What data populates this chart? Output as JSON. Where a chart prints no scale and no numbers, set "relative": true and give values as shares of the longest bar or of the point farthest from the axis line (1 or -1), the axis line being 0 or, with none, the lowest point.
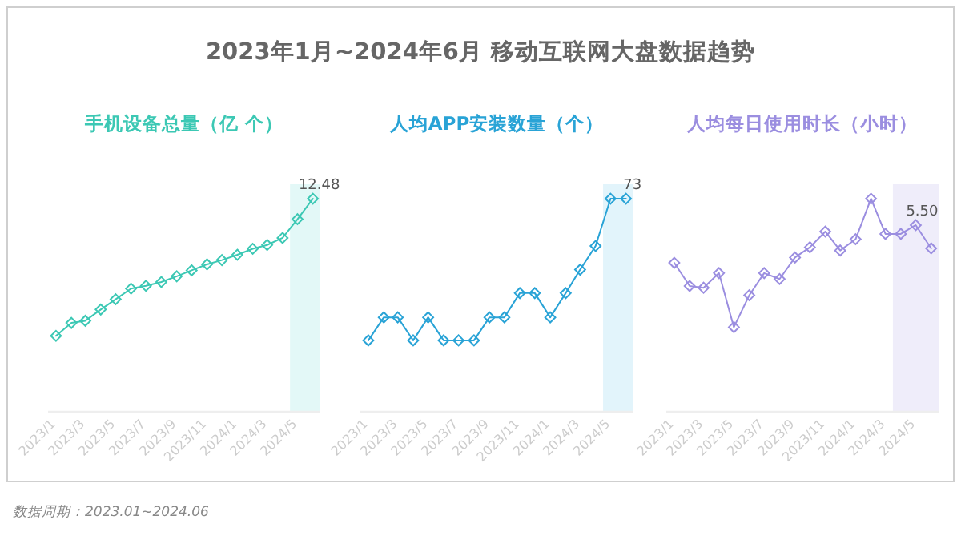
{
  "chart_data": [
    {
      "type": "line",
      "title": "2023年1月~2024年6月 移动互联网大盘数据趋势",
      "subtitle": "手机设备总量（亿 个）",
      "relative": true,
      "marker": "diamond",
      "line_style": "solid",
      "x": [
        "2023-01",
        "2023-02",
        "2023-03",
        "2023-04",
        "2023-05",
        "2023-06",
        "2023-07",
        "2023-08",
        "2023-09",
        "2023-10",
        "2023-11",
        "2023-12",
        "2024-01",
        "2024-02",
        "2024-03",
        "2024-04",
        "2024-05",
        "2024-06"
      ],
      "xlim": [
        "2022-12-16",
        "2024-06-16"
      ],
      "xticks": [
        {
          "value": "2023-01",
          "label": "2023/1"
        },
        {
          "value": "2023-03",
          "label": "2023/3"
        },
        {
          "value": "2023-05",
          "label": "2023/5"
        },
        {
          "value": "2023-07",
          "label": "2023/7"
        },
        {
          "value": "2023-09",
          "label": "2023/9"
        },
        {
          "value": "2023-11",
          "label": "2023/11"
        },
        {
          "value": "2024-01",
          "label": "2024/1"
        },
        {
          "value": "2024-03",
          "label": "2024/3"
        },
        {
          "value": "2024-05",
          "label": "2024/5"
        }
      ],
      "bands": [
        {
          "axis": "x",
          "from": "2024-04-16",
          "to": "2024-06-16",
          "color": "#e3f8f7"
        }
      ],
      "series": [
        {
          "color": "#3cc8b4",
          "values": [
            0.356,
            0.417,
            0.427,
            0.48,
            0.528,
            0.578,
            0.591,
            0.609,
            0.636,
            0.664,
            0.692,
            0.712,
            0.737,
            0.765,
            0.783,
            0.816,
            0.904,
            1
          ]
        }
      ],
      "annotations": [
        {
          "text": "12.48",
          "x": "2024-06",
          "y": 1
        },
        "数据周期：2023.01~2024.06"
      ]
    },
    {
      "type": "line",
      "subtitle": "人均APP安装数量（个）",
      "relative": true,
      "marker": "diamond",
      "line_style": "solid",
      "x": [
        "2023-01",
        "2023-02",
        "2023-03",
        "2023-04",
        "2023-05",
        "2023-06",
        "2023-07",
        "2023-08",
        "2023-09",
        "2023-10",
        "2023-11",
        "2023-12",
        "2024-01",
        "2024-02",
        "2024-03",
        "2024-04",
        "2024-05",
        "2024-06"
      ],
      "xlim": [
        "2022-12-16",
        "2024-06-16"
      ],
      "xticks": [
        {
          "value": "2023-01",
          "label": "2023/1"
        },
        {
          "value": "2023-03",
          "label": "2023/3"
        },
        {
          "value": "2023-05",
          "label": "2023/5"
        },
        {
          "value": "2023-07",
          "label": "2023/7"
        },
        {
          "value": "2023-09",
          "label": "2023/9"
        },
        {
          "value": "2023-11",
          "label": "2023/11"
        },
        {
          "value": "2024-01",
          "label": "2024/1"
        },
        {
          "value": "2024-03",
          "label": "2024/3"
        },
        {
          "value": "2024-05",
          "label": "2024/5"
        }
      ],
      "bands": [
        {
          "axis": "x",
          "from": "2024-04-16",
          "to": "2024-06-16",
          "color": "#e2f4fb"
        }
      ],
      "series": [
        {
          "color": "#29a3d6",
          "values": [
            0.335,
            0.443,
            0.443,
            0.335,
            0.443,
            0.335,
            0.335,
            0.335,
            0.443,
            0.443,
            0.557,
            0.557,
            0.443,
            0.557,
            0.667,
            0.778,
            1,
            1
          ]
        }
      ],
      "annotations": [
        {
          "text": "73",
          "x": "2024-06",
          "y": 1
        }
      ]
    },
    {
      "type": "line",
      "subtitle": "人均每日使用时长（小时）",
      "relative": true,
      "marker": "diamond",
      "line_style": "solid",
      "x": [
        "2023-01",
        "2023-02",
        "2023-03",
        "2023-04",
        "2023-05",
        "2023-06",
        "2023-07",
        "2023-08",
        "2023-09",
        "2023-10",
        "2023-11",
        "2023-12",
        "2024-01",
        "2024-02",
        "2024-03",
        "2024-04",
        "2024-05",
        "2024-06"
      ],
      "xlim": [
        "2022-12-16",
        "2024-06-16"
      ],
      "xticks": [
        {
          "value": "2023-01",
          "label": "2023/1"
        },
        {
          "value": "2023-03",
          "label": "2023/3"
        },
        {
          "value": "2023-05",
          "label": "2023/5"
        },
        {
          "value": "2023-07",
          "label": "2023/7"
        },
        {
          "value": "2023-09",
          "label": "2023/9"
        },
        {
          "value": "2023-11",
          "label": "2023/11"
        },
        {
          "value": "2024-01",
          "label": "2024/1"
        },
        {
          "value": "2024-03",
          "label": "2024/3"
        },
        {
          "value": "2024-05",
          "label": "2024/5"
        }
      ],
      "bands": [
        {
          "axis": "x",
          "from": "2024-03-16",
          "to": "2024-06-16",
          "color": "#efedfa"
        }
      ],
      "series": [
        {
          "color": "#9b8ee0",
          "values": [
            0.699,
            0.59,
            0.582,
            0.651,
            0.397,
            0.547,
            0.651,
            0.623,
            0.724,
            0.772,
            0.846,
            0.757,
            0.81,
            1,
            0.835,
            0.835,
            0.876,
            0.767
          ]
        }
      ],
      "annotations": [
        {
          "text": "5.50",
          "x": "2024-05",
          "y": 0.876
        }
      ]
    }
  ]
}
